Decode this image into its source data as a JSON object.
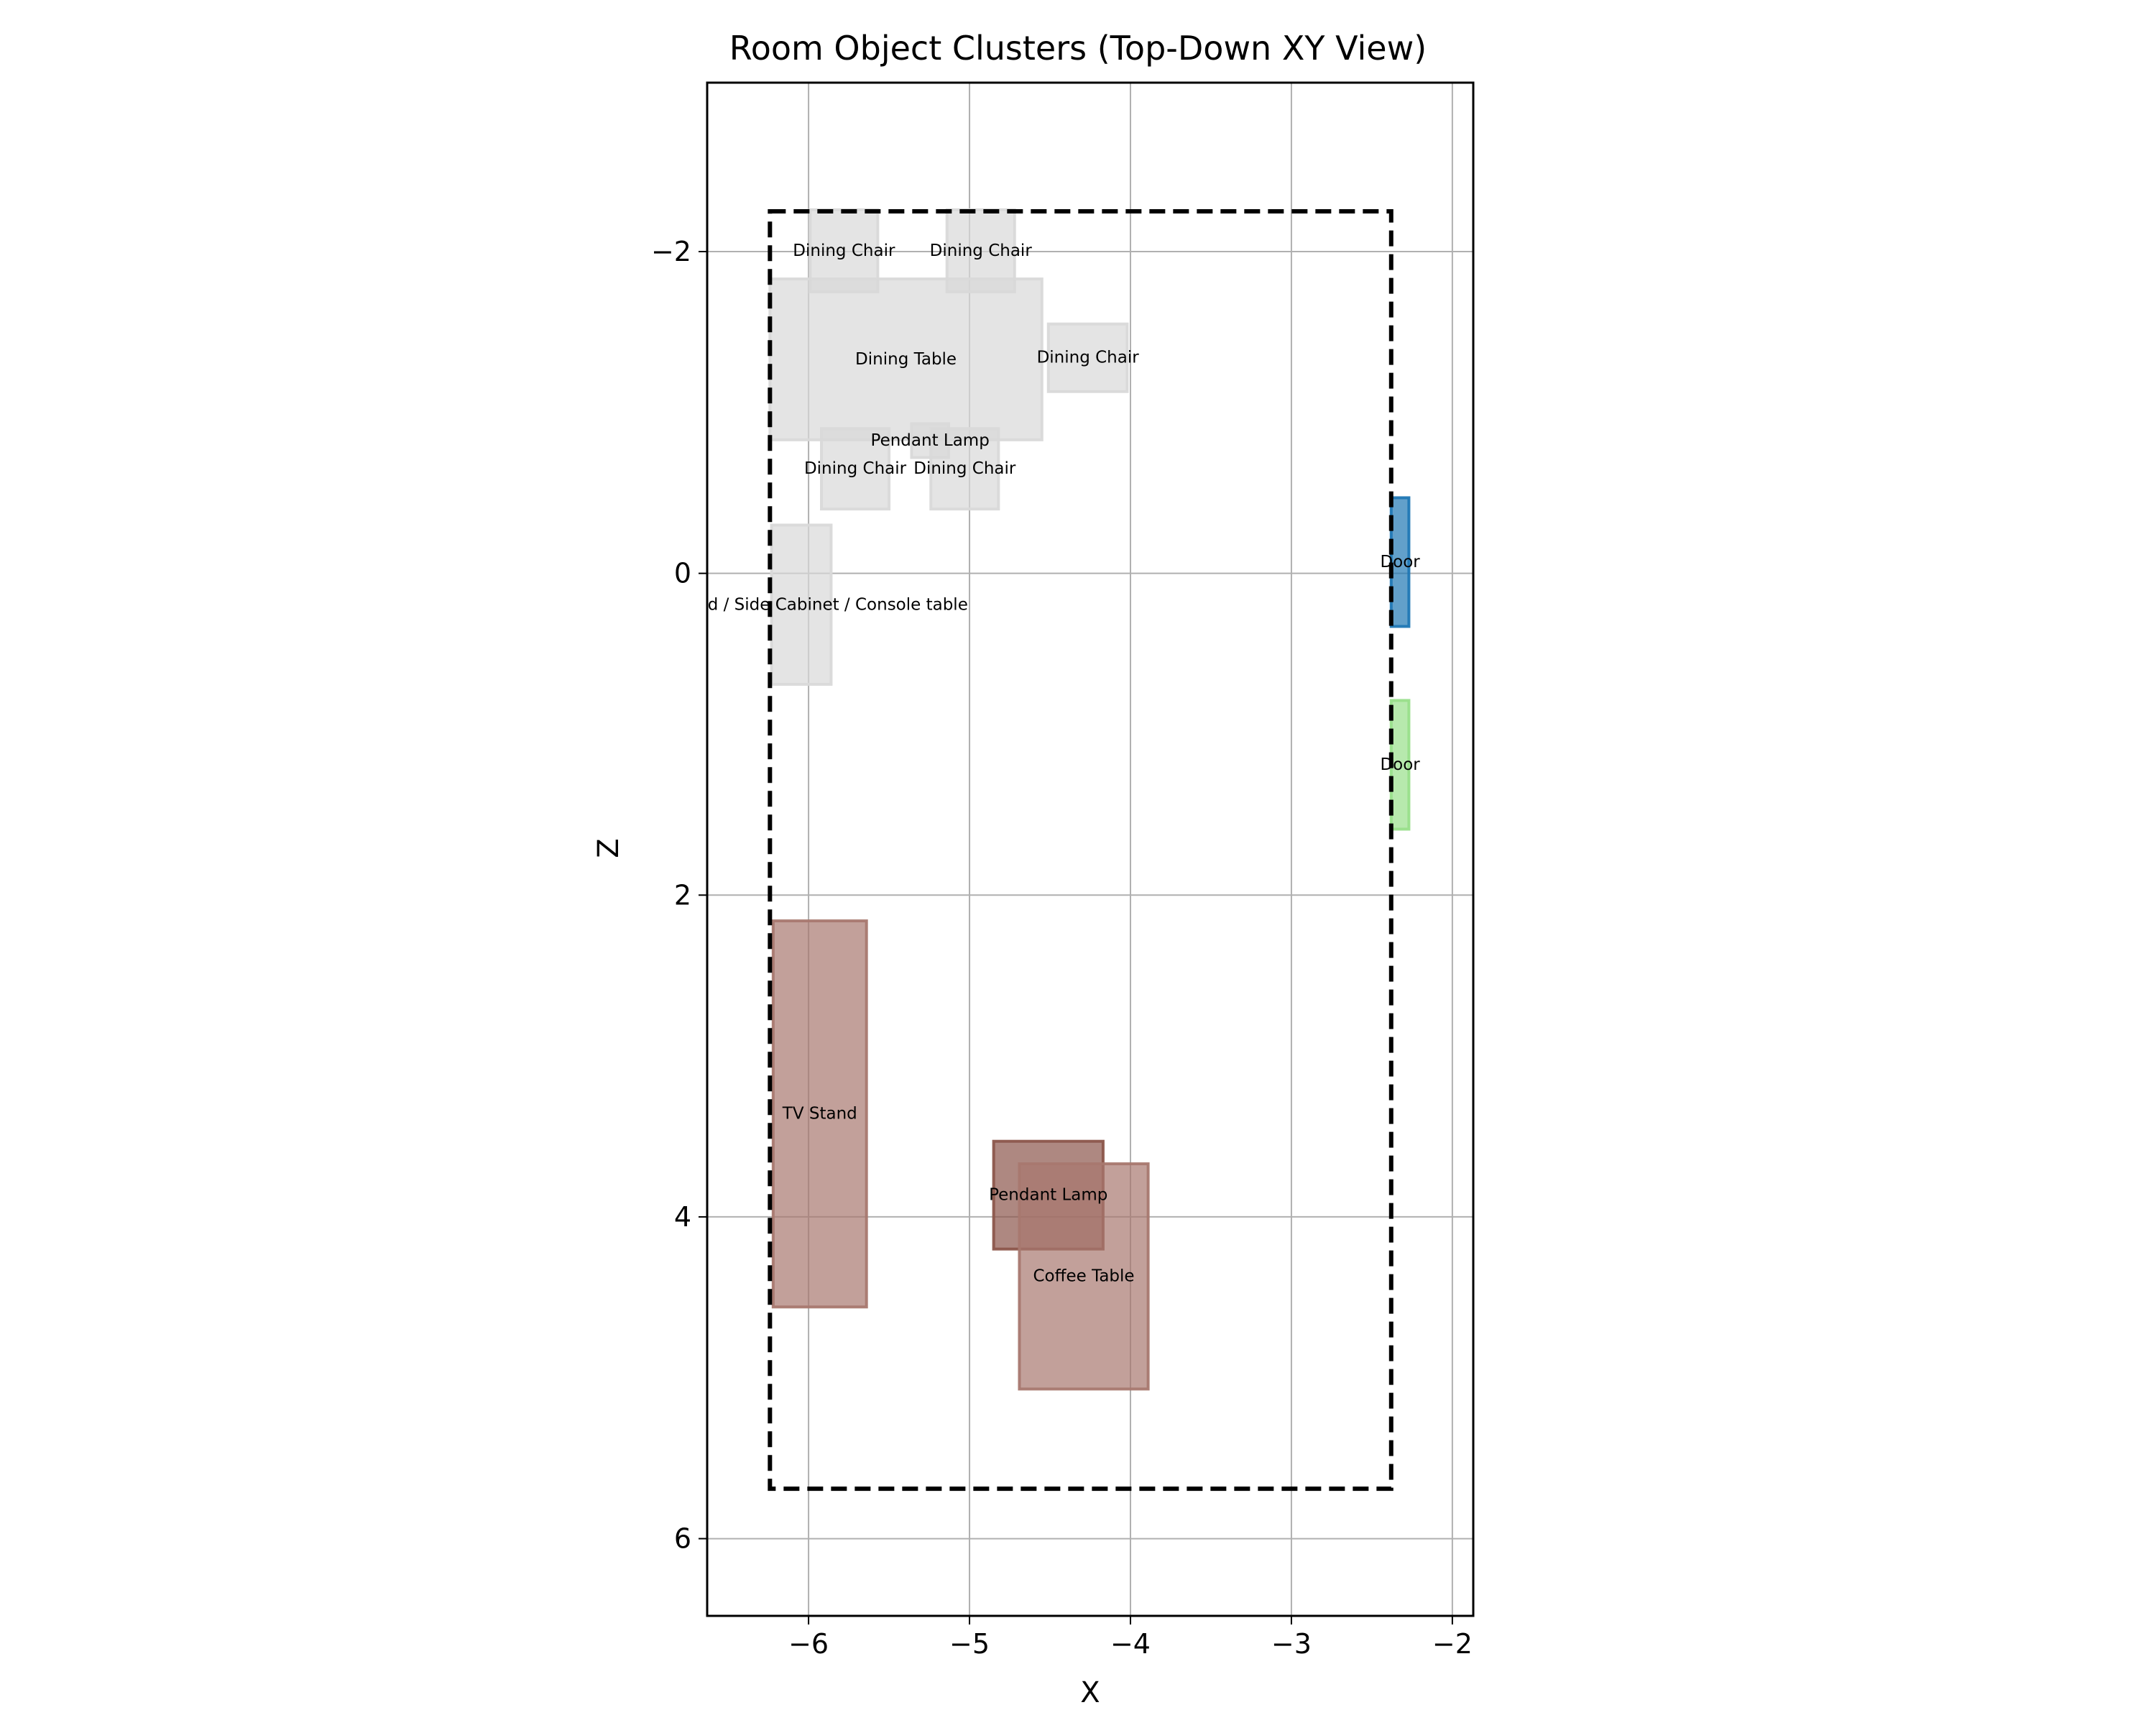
{
  "chart_data": {
    "type": "scatter",
    "title": "Room Object Clusters (Top-Down XY View)",
    "xlabel": "X",
    "ylabel": "Z",
    "xlim": [
      -6.63,
      -1.87
    ],
    "ylim": [
      -3.05,
      6.48
    ],
    "y_inverted": true,
    "grid": true,
    "x_ticks": [
      -6,
      -5,
      -4,
      -3,
      -2
    ],
    "y_ticks": [
      -2,
      0,
      2,
      4,
      6
    ],
    "x_tick_labels": [
      "−6",
      "−5",
      "−4",
      "−3",
      "−2"
    ],
    "y_tick_labels": [
      "−2",
      "0",
      "2",
      "4",
      "6"
    ],
    "room_bounds": {
      "x": [
        -6.24,
        -2.38
      ],
      "z": [
        -2.25,
        5.69
      ],
      "style": "dashed black"
    },
    "objects": [
      {
        "label": "Dining Chair",
        "x": [
          -5.99,
          -5.57
        ],
        "z": [
          -2.26,
          -1.75
        ],
        "color": "#d9d9d9"
      },
      {
        "label": "Dining Chair",
        "x": [
          -5.14,
          -4.72
        ],
        "z": [
          -2.26,
          -1.75
        ],
        "color": "#d9d9d9"
      },
      {
        "label": "Dining Table",
        "x": [
          -6.24,
          -4.55
        ],
        "z": [
          -1.83,
          -0.83
        ],
        "color": "#d9d9d9"
      },
      {
        "label": "Dining Chair",
        "x": [
          -4.51,
          -4.02
        ],
        "z": [
          -1.55,
          -1.13
        ],
        "color": "#d9d9d9"
      },
      {
        "label": "Pendant Lamp",
        "x": [
          -5.36,
          -5.13
        ],
        "z": [
          -0.93,
          -0.72
        ],
        "color": "#d9d9d9"
      },
      {
        "label": "Dining Chair",
        "x": [
          -5.92,
          -5.5
        ],
        "z": [
          -0.9,
          -0.4
        ],
        "color": "#d9d9d9"
      },
      {
        "label": "Dining Chair",
        "x": [
          -5.24,
          -4.82
        ],
        "z": [
          -0.9,
          -0.4
        ],
        "color": "#d9d9d9"
      },
      {
        "label": "Sideboard / Side Cabinet / Console table",
        "x": [
          -6.23,
          -5.86
        ],
        "z": [
          -0.3,
          0.69
        ],
        "color": "#d9d9d9"
      },
      {
        "label": "Door",
        "x": [
          -2.38,
          -2.27
        ],
        "z": [
          -0.47,
          0.33
        ],
        "color": "#1f77b4"
      },
      {
        "label": "Door",
        "x": [
          -2.38,
          -2.27
        ],
        "z": [
          0.79,
          1.59
        ],
        "color": "#98df8a"
      },
      {
        "label": "TV Stand",
        "x": [
          -6.22,
          -5.64
        ],
        "z": [
          2.16,
          4.56
        ],
        "color": "#a8786f"
      },
      {
        "label": "Pendant Lamp",
        "x": [
          -4.85,
          -4.17
        ],
        "z": [
          3.53,
          4.2
        ],
        "color": "#8c564b"
      },
      {
        "label": "Coffee Table",
        "x": [
          -4.69,
          -3.89
        ],
        "z": [
          3.67,
          5.07
        ],
        "color": "#a8786f"
      }
    ]
  }
}
